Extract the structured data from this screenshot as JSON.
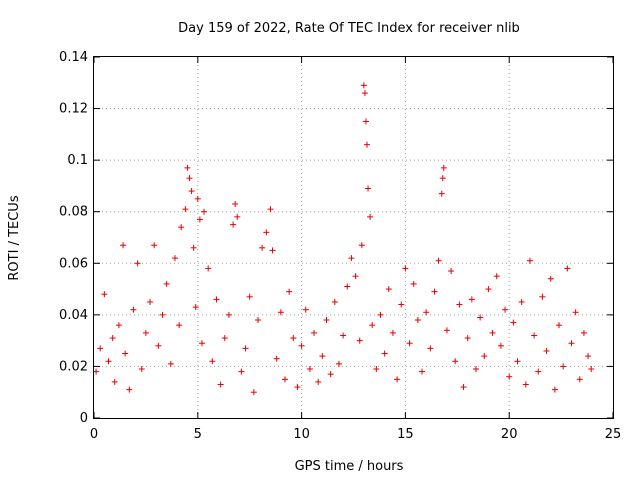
{
  "chart_data": {
    "type": "scatter",
    "title": "Day 159 of 2022, Rate Of TEC Index for receiver nlib",
    "xlabel": "GPS time / hours",
    "ylabel": "ROTI / TECUs",
    "xlim": [
      0,
      25
    ],
    "ylim": [
      0,
      0.14
    ],
    "xticks": [
      0,
      5,
      10,
      15,
      20,
      25
    ],
    "xtick_labels": [
      "0",
      "5",
      "10",
      "15",
      "20",
      "25"
    ],
    "yticks": [
      0,
      0.02,
      0.04,
      0.06,
      0.08,
      0.1,
      0.12,
      0.14
    ],
    "ytick_labels": [
      "0",
      "0.02",
      "0.04",
      "0.06",
      "0.08",
      "0.1",
      "0.12",
      "0.14"
    ],
    "grid": true,
    "marker": "+",
    "color": "#e60000",
    "series": [
      {
        "name": "ROTI",
        "points": [
          [
            0.1,
            0.018
          ],
          [
            0.3,
            0.027
          ],
          [
            0.5,
            0.048
          ],
          [
            0.7,
            0.022
          ],
          [
            0.9,
            0.031
          ],
          [
            1.0,
            0.014
          ],
          [
            1.2,
            0.036
          ],
          [
            1.4,
            0.067
          ],
          [
            1.5,
            0.025
          ],
          [
            1.7,
            0.011
          ],
          [
            1.9,
            0.042
          ],
          [
            2.1,
            0.06
          ],
          [
            2.3,
            0.019
          ],
          [
            2.5,
            0.033
          ],
          [
            2.7,
            0.045
          ],
          [
            2.9,
            0.067
          ],
          [
            3.1,
            0.028
          ],
          [
            3.3,
            0.04
          ],
          [
            3.5,
            0.052
          ],
          [
            3.7,
            0.021
          ],
          [
            3.9,
            0.062
          ],
          [
            4.1,
            0.036
          ],
          [
            4.2,
            0.074
          ],
          [
            4.4,
            0.081
          ],
          [
            4.5,
            0.097
          ],
          [
            4.6,
            0.093
          ],
          [
            4.7,
            0.088
          ],
          [
            4.8,
            0.066
          ],
          [
            4.9,
            0.043
          ],
          [
            5.0,
            0.085
          ],
          [
            5.1,
            0.077
          ],
          [
            5.2,
            0.029
          ],
          [
            5.3,
            0.08
          ],
          [
            5.5,
            0.058
          ],
          [
            5.7,
            0.022
          ],
          [
            5.9,
            0.046
          ],
          [
            6.1,
            0.013
          ],
          [
            6.3,
            0.031
          ],
          [
            6.5,
            0.04
          ],
          [
            6.7,
            0.075
          ],
          [
            6.8,
            0.083
          ],
          [
            6.9,
            0.078
          ],
          [
            7.1,
            0.018
          ],
          [
            7.3,
            0.027
          ],
          [
            7.5,
            0.047
          ],
          [
            7.7,
            0.01
          ],
          [
            7.9,
            0.038
          ],
          [
            8.1,
            0.066
          ],
          [
            8.3,
            0.072
          ],
          [
            8.5,
            0.081
          ],
          [
            8.6,
            0.065
          ],
          [
            8.8,
            0.023
          ],
          [
            9.0,
            0.041
          ],
          [
            9.2,
            0.015
          ],
          [
            9.4,
            0.049
          ],
          [
            9.6,
            0.031
          ],
          [
            9.8,
            0.012
          ],
          [
            10.0,
            0.028
          ],
          [
            10.2,
            0.042
          ],
          [
            10.4,
            0.019
          ],
          [
            10.6,
            0.033
          ],
          [
            10.8,
            0.014
          ],
          [
            11.0,
            0.024
          ],
          [
            11.2,
            0.038
          ],
          [
            11.4,
            0.017
          ],
          [
            11.6,
            0.045
          ],
          [
            11.8,
            0.021
          ],
          [
            12.0,
            0.032
          ],
          [
            12.2,
            0.051
          ],
          [
            12.4,
            0.062
          ],
          [
            12.6,
            0.055
          ],
          [
            12.8,
            0.03
          ],
          [
            12.9,
            0.067
          ],
          [
            13.0,
            0.129
          ],
          [
            13.05,
            0.126
          ],
          [
            13.1,
            0.115
          ],
          [
            13.15,
            0.106
          ],
          [
            13.2,
            0.089
          ],
          [
            13.3,
            0.078
          ],
          [
            13.4,
            0.036
          ],
          [
            13.6,
            0.019
          ],
          [
            13.8,
            0.04
          ],
          [
            14.0,
            0.025
          ],
          [
            14.2,
            0.05
          ],
          [
            14.4,
            0.033
          ],
          [
            14.6,
            0.015
          ],
          [
            14.8,
            0.044
          ],
          [
            15.0,
            0.058
          ],
          [
            15.2,
            0.029
          ],
          [
            15.4,
            0.052
          ],
          [
            15.6,
            0.038
          ],
          [
            15.8,
            0.018
          ],
          [
            16.0,
            0.041
          ],
          [
            16.2,
            0.027
          ],
          [
            16.4,
            0.049
          ],
          [
            16.6,
            0.061
          ],
          [
            16.75,
            0.087
          ],
          [
            16.8,
            0.093
          ],
          [
            16.85,
            0.097
          ],
          [
            17.0,
            0.034
          ],
          [
            17.2,
            0.057
          ],
          [
            17.4,
            0.022
          ],
          [
            17.6,
            0.044
          ],
          [
            17.8,
            0.012
          ],
          [
            18.0,
            0.031
          ],
          [
            18.2,
            0.046
          ],
          [
            18.4,
            0.019
          ],
          [
            18.6,
            0.039
          ],
          [
            18.8,
            0.024
          ],
          [
            19.0,
            0.05
          ],
          [
            19.2,
            0.033
          ],
          [
            19.4,
            0.055
          ],
          [
            19.6,
            0.028
          ],
          [
            19.8,
            0.042
          ],
          [
            20.0,
            0.016
          ],
          [
            20.2,
            0.037
          ],
          [
            20.4,
            0.022
          ],
          [
            20.6,
            0.045
          ],
          [
            20.8,
            0.013
          ],
          [
            21.0,
            0.061
          ],
          [
            21.2,
            0.032
          ],
          [
            21.4,
            0.018
          ],
          [
            21.6,
            0.047
          ],
          [
            21.8,
            0.026
          ],
          [
            22.0,
            0.054
          ],
          [
            22.2,
            0.011
          ],
          [
            22.4,
            0.036
          ],
          [
            22.6,
            0.02
          ],
          [
            22.8,
            0.058
          ],
          [
            23.0,
            0.029
          ],
          [
            23.2,
            0.041
          ],
          [
            23.4,
            0.015
          ],
          [
            23.6,
            0.033
          ],
          [
            23.8,
            0.024
          ],
          [
            23.95,
            0.019
          ]
        ]
      }
    ]
  }
}
